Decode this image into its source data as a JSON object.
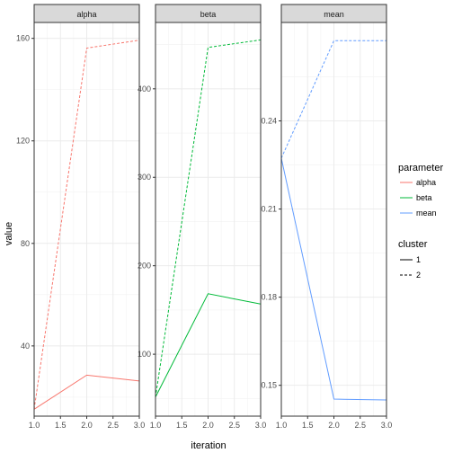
{
  "chart_data": {
    "type": "line",
    "facets": [
      "alpha",
      "beta",
      "mean"
    ],
    "xlabel": "iteration",
    "ylabel": "value",
    "x_ticks": [
      "1.0",
      "1.5",
      "2.0",
      "2.5",
      "3.0"
    ],
    "panels": [
      {
        "facet": "alpha",
        "parameter": "alpha",
        "color": "#F8766D",
        "xlim": [
          1,
          3
        ],
        "ylim": [
          12.6,
          166.2
        ],
        "y_ticks": [
          40,
          80,
          120,
          160
        ],
        "y_tick_labels": [
          "40",
          "80",
          "120",
          "160"
        ],
        "series": [
          {
            "cluster": "1",
            "x": [
              1,
              2,
              3
            ],
            "y": [
              15.3,
              28.6,
              26.3
            ]
          },
          {
            "cluster": "2",
            "x": [
              1,
              2,
              3
            ],
            "y": [
              15.3,
              156.2,
              159.3
            ]
          }
        ]
      },
      {
        "facet": "beta",
        "parameter": "beta",
        "color": "#00BA38",
        "xlim": [
          1,
          3
        ],
        "ylim": [
          30,
          475
        ],
        "y_ticks": [
          100,
          200,
          300,
          400
        ],
        "y_tick_labels": [
          "100",
          "200",
          "300",
          "400"
        ],
        "series": [
          {
            "cluster": "1",
            "x": [
              1,
              2,
              3
            ],
            "y": [
              51.6,
              168.4,
              156.7
            ]
          },
          {
            "cluster": "2",
            "x": [
              1,
              2,
              3
            ],
            "y": [
              51.6,
              446.8,
              455.3
            ]
          }
        ]
      },
      {
        "facet": "mean",
        "parameter": "mean",
        "color": "#619CFF",
        "xlim": [
          1,
          3
        ],
        "ylim": [
          0.1395,
          0.2735
        ],
        "y_ticks": [
          0.15,
          0.18,
          0.21,
          0.24
        ],
        "y_tick_labels": [
          "0.15",
          "0.18",
          "0.21",
          "0.24"
        ],
        "series": [
          {
            "cluster": "1",
            "x": [
              1,
              2,
              3
            ],
            "y": [
              0.2273,
              0.1453,
              0.145
            ]
          },
          {
            "cluster": "2",
            "x": [
              1,
              2,
              3
            ],
            "y": [
              0.2273,
              0.2673,
              0.2673
            ]
          }
        ]
      }
    ],
    "legend_parameter": {
      "title": "parameter",
      "entries": [
        {
          "label": "alpha",
          "color": "#F8766D"
        },
        {
          "label": "beta",
          "color": "#00BA38"
        },
        {
          "label": "mean",
          "color": "#619CFF"
        }
      ]
    },
    "legend_cluster": {
      "title": "cluster",
      "entries": [
        {
          "label": "1",
          "linetype": "solid"
        },
        {
          "label": "2",
          "linetype": "dashed"
        }
      ]
    },
    "grid": true,
    "legend_position": "right"
  }
}
